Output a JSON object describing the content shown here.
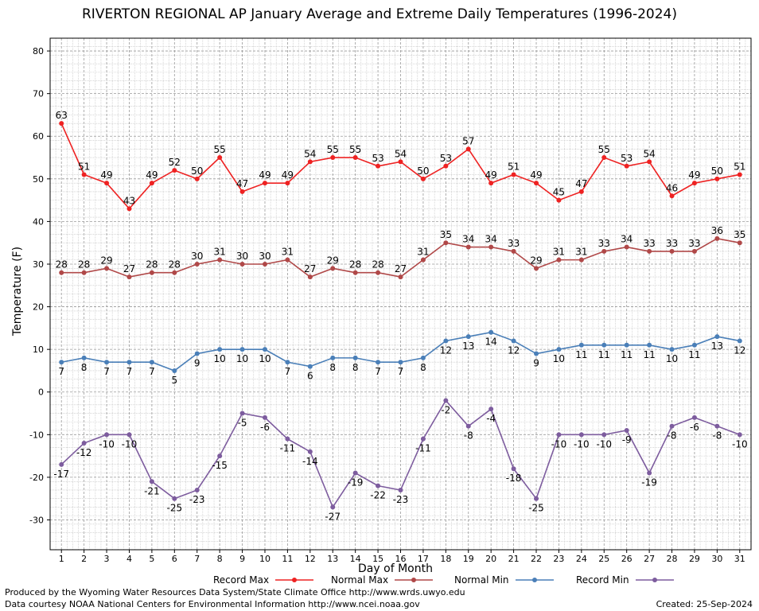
{
  "chart_data": {
    "type": "line",
    "title": "RIVERTON REGIONAL AP January Average and Extreme Daily Temperatures (1996-2024)",
    "xlabel": "Day of Month",
    "ylabel": "Temperature (F)",
    "ylim": [
      -37,
      83
    ],
    "yticks": [
      -30,
      -20,
      -10,
      0,
      10,
      20,
      30,
      40,
      50,
      60,
      70,
      80
    ],
    "x": [
      1,
      2,
      3,
      4,
      5,
      6,
      7,
      8,
      9,
      10,
      11,
      12,
      13,
      14,
      15,
      16,
      17,
      18,
      19,
      20,
      21,
      22,
      23,
      24,
      25,
      26,
      27,
      28,
      29,
      30,
      31
    ],
    "grid": true,
    "legend_position": "bottom",
    "series": [
      {
        "name": "Record Max",
        "color": "#ee2222",
        "values": [
          63,
          51,
          49,
          43,
          49,
          52,
          50,
          55,
          47,
          49,
          49,
          54,
          55,
          55,
          53,
          54,
          50,
          53,
          57,
          49,
          51,
          49,
          45,
          47,
          55,
          53,
          54,
          46,
          49,
          50,
          51
        ]
      },
      {
        "name": "Normal Max",
        "color": "#b04848",
        "values": [
          28,
          28,
          29,
          27,
          28,
          28,
          30,
          31,
          30,
          30,
          31,
          27,
          29,
          28,
          28,
          27,
          31,
          35,
          34,
          34,
          33,
          29,
          31,
          31,
          33,
          34,
          33,
          33,
          33,
          36,
          35
        ]
      },
      {
        "name": "Normal Min",
        "color": "#4a7fb8",
        "values": [
          7,
          8,
          7,
          7,
          7,
          5,
          9,
          10,
          10,
          10,
          7,
          6,
          8,
          8,
          7,
          7,
          8,
          12,
          13,
          14,
          12,
          9,
          10,
          11,
          11,
          11,
          11,
          10,
          11,
          13,
          12
        ]
      },
      {
        "name": "Record Min",
        "color": "#7d5c9e",
        "values": [
          -17,
          -12,
          -10,
          -10,
          -21,
          -25,
          -23,
          -15,
          -5,
          -6,
          -11,
          -14,
          -27,
          -19,
          -22,
          -23,
          -11,
          -2,
          -8,
          -4,
          -18,
          -25,
          -10,
          -10,
          -10,
          -9,
          -19,
          -8,
          -6,
          -8,
          -10
        ]
      }
    ]
  },
  "footer": {
    "produced_by": "Produced by the Wyoming Water Resources Data System/State Climate Office http://www.wrds.uwyo.edu",
    "data_courtesy": "Data courtesy NOAA National Centers for Environmental Information http://www.ncei.noaa.gov",
    "created": "Created:  25-Sep-2024"
  }
}
